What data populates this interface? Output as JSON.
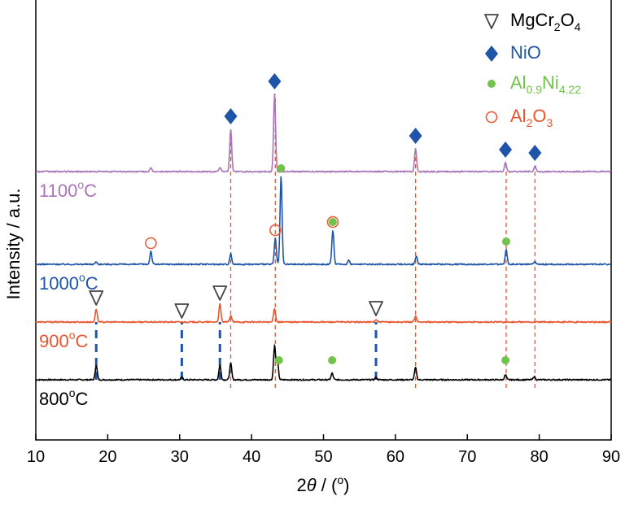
{
  "chart_data": {
    "type": "line",
    "xlabel": "2θ / (°)",
    "xlabel_parts": {
      "theta": "θ",
      "sep": " / (",
      "deg": "o",
      "close": ")"
    },
    "ylabel": "Intensity / a.u.",
    "xlim": [
      10,
      90
    ],
    "x_ticks": [
      10,
      20,
      30,
      40,
      50,
      60,
      70,
      80,
      90
    ],
    "series": [
      {
        "name": "800",
        "label": "800",
        "label_sup": "o",
        "label_suffix": "C",
        "color": "#000000",
        "label_color": "#000000",
        "offset": 0,
        "peaks": [
          [
            18.4,
            18
          ],
          [
            30.3,
            3
          ],
          [
            35.6,
            18
          ],
          [
            37.1,
            20
          ],
          [
            43.2,
            42
          ],
          [
            43.6,
            22
          ],
          [
            51.2,
            8
          ],
          [
            57.3,
            3
          ],
          [
            62.8,
            15
          ],
          [
            75.3,
            6
          ],
          [
            79.3,
            4
          ]
        ]
      },
      {
        "name": "900",
        "label": "900",
        "label_sup": "o",
        "label_suffix": "C",
        "color": "#e8552f",
        "label_color": "#e8552f",
        "offset": 1,
        "peaks": [
          [
            18.4,
            16
          ],
          [
            35.6,
            22
          ],
          [
            37.1,
            8
          ],
          [
            43.2,
            17
          ],
          [
            62.8,
            8
          ],
          [
            57.3,
            3
          ]
        ]
      },
      {
        "name": "1000",
        "label": "1000",
        "label_sup": "o",
        "label_suffix": "C",
        "color": "#1f55a8",
        "label_color": "#1f55a8",
        "offset": 2,
        "peaks": [
          [
            18.4,
            3
          ],
          [
            26.0,
            16
          ],
          [
            37.1,
            13
          ],
          [
            43.3,
            32
          ],
          [
            44.1,
            108
          ],
          [
            51.3,
            42
          ],
          [
            53.5,
            5
          ],
          [
            62.9,
            10
          ],
          [
            75.4,
            18
          ],
          [
            79.4,
            3
          ]
        ]
      },
      {
        "name": "1100",
        "label": "1100",
        "label_sup": "o",
        "label_suffix": "C",
        "color": "#a775b8",
        "label_color": "#a775b8",
        "offset": 3,
        "peaks": [
          [
            26.0,
            4
          ],
          [
            35.6,
            5
          ],
          [
            37.1,
            52
          ],
          [
            43.2,
            95
          ],
          [
            62.8,
            28
          ],
          [
            75.3,
            11
          ],
          [
            79.4,
            7
          ]
        ]
      }
    ],
    "legend": {
      "position": "top-right",
      "entries": [
        {
          "marker": "triangle-down",
          "label": "MgCr",
          "sub1": "2",
          "mid": "O",
          "sub2": "4",
          "color": "#444444",
          "text_color": "#000000"
        },
        {
          "marker": "diamond",
          "label": "NiO",
          "color": "#1f55a8",
          "text_color": "#1f55a8"
        },
        {
          "marker": "dot",
          "label": "Al",
          "sub1": "0.9",
          "mid": "Ni",
          "sub2": "4.22",
          "color": "#72c34b",
          "text_color": "#72c34b"
        },
        {
          "marker": "circle",
          "label": "Al",
          "sub1": "2",
          "mid": "O",
          "sub2": "3",
          "color": "#e8552f",
          "text_color": "#e8552f"
        }
      ]
    },
    "reference_lines": [
      {
        "x": 18.4,
        "color": "#1f55a8",
        "style": "thick-dash",
        "from_series": 0,
        "to_series": 1
      },
      {
        "x": 30.3,
        "color": "#1f55a8",
        "style": "thick-dash",
        "from_series": 0,
        "to_series": 1
      },
      {
        "x": 35.6,
        "color": "#1f55a8",
        "style": "thick-dash",
        "from_series": 0,
        "to_series": 1
      },
      {
        "x": 57.3,
        "color": "#1f55a8",
        "style": "thick-dash",
        "from_series": 0,
        "to_series": 1
      },
      {
        "x": 37.1,
        "color": "#e8552f",
        "style": "thin-dash",
        "from_series": 0,
        "to_series": 3
      },
      {
        "x": 43.3,
        "color": "#e8552f",
        "style": "thin-dash",
        "from_series": 0,
        "to_series": 3
      },
      {
        "x": 62.8,
        "color": "#e8552f",
        "style": "thin-dash",
        "from_series": 0,
        "to_series": 3
      },
      {
        "x": 75.4,
        "color": "#e8552f",
        "style": "thin-dash",
        "from_series": 0,
        "to_series": 3
      },
      {
        "x": 79.4,
        "color": "#e8552f",
        "style": "thin-dash",
        "from_series": 0,
        "to_series": 3
      }
    ],
    "annotations": [
      {
        "marker": "diamond",
        "x": 37.1,
        "series": 3,
        "color": "#1f55a8"
      },
      {
        "marker": "diamond",
        "x": 43.2,
        "series": 3,
        "color": "#1f55a8"
      },
      {
        "marker": "diamond",
        "x": 62.8,
        "series": 3,
        "color": "#1f55a8"
      },
      {
        "marker": "diamond",
        "x": 75.3,
        "series": 3,
        "color": "#1f55a8"
      },
      {
        "marker": "diamond",
        "x": 79.4,
        "series": 3,
        "color": "#1f55a8"
      },
      {
        "marker": "dot",
        "x": 44.1,
        "series": 2,
        "color": "#72c34b"
      },
      {
        "marker": "dot",
        "x": 51.3,
        "series": 2,
        "color": "#72c34b"
      },
      {
        "marker": "dot",
        "x": 75.4,
        "series": 2,
        "color": "#72c34b"
      },
      {
        "marker": "circle",
        "x": 26.0,
        "series": 2,
        "color": "#e8552f"
      },
      {
        "marker": "circle",
        "x": 43.3,
        "series": 2,
        "color": "#e8552f"
      },
      {
        "marker": "circle",
        "x": 51.3,
        "series": 2,
        "color": "#e8552f"
      },
      {
        "marker": "triangle-down",
        "x": 18.4,
        "series": 1,
        "color": "#444444"
      },
      {
        "marker": "triangle-down",
        "x": 30.3,
        "series": 1,
        "color": "#444444"
      },
      {
        "marker": "triangle-down",
        "x": 35.6,
        "series": 1,
        "color": "#444444"
      },
      {
        "marker": "triangle-down",
        "x": 57.3,
        "series": 1,
        "color": "#444444"
      },
      {
        "marker": "dot",
        "x": 43.8,
        "series": 0,
        "color": "#72c34b"
      },
      {
        "marker": "dot",
        "x": 51.2,
        "series": 0,
        "color": "#72c34b"
      },
      {
        "marker": "dot",
        "x": 75.3,
        "series": 0,
        "color": "#72c34b"
      }
    ]
  }
}
